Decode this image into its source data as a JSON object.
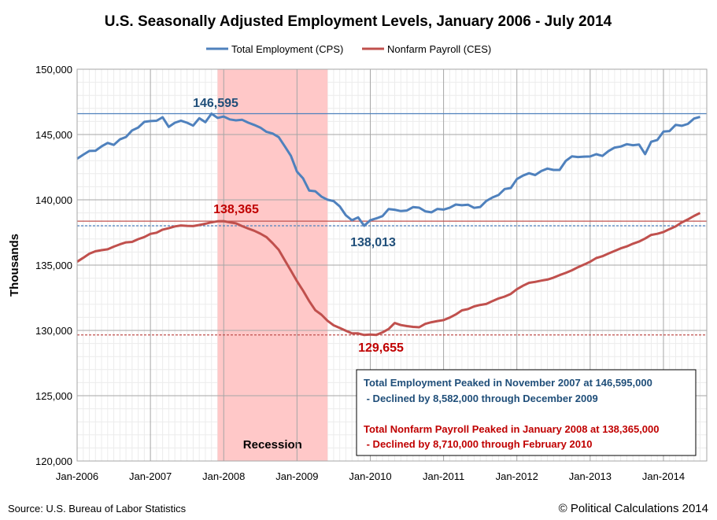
{
  "chart_data": {
    "type": "line",
    "title": "U.S. Seasonally Adjusted Employment Levels, January 2006 - July 2014",
    "ylabel": "Thousands",
    "xlabel": "",
    "ylim": [
      120000,
      150000
    ],
    "yticks": [
      "120,000",
      "125,000",
      "130,000",
      "135,000",
      "140,000",
      "145,000",
      "150,000"
    ],
    "xticks": [
      "Jan-2006",
      "Jan-2007",
      "Jan-2008",
      "Jan-2009",
      "Jan-2010",
      "Jan-2011",
      "Jan-2012",
      "Jan-2013",
      "Jan-2014"
    ],
    "x_start": "2006-01",
    "x_end": "2014-07",
    "grid": true,
    "legend_placement": "top",
    "recession": {
      "label": "Recession",
      "start": "2007-12",
      "end": "2009-06",
      "color": "#ffc8c8"
    },
    "series": [
      {
        "name": "Total Employment (CPS)",
        "color": "#4f81bd",
        "values": [
          143150,
          143457,
          143741,
          143761,
          144089,
          144353,
          144202,
          144625,
          144815,
          145314,
          145534,
          145970,
          146028,
          146057,
          146320,
          145586,
          145903,
          146063,
          145905,
          145682,
          146244,
          145946,
          146595,
          146273,
          146378,
          146156,
          146086,
          146132,
          145908,
          145737,
          145532,
          145203,
          145076,
          144802,
          144100,
          143369,
          142152,
          141640,
          140707,
          140656,
          140248,
          140009,
          139901,
          139492,
          138818,
          138432,
          138659,
          138013,
          138438,
          138581,
          138751,
          139297,
          139241,
          139141,
          139179,
          139438,
          139396,
          139119,
          139044,
          139301,
          139250,
          139394,
          139639,
          139586,
          139624,
          139384,
          139454,
          139918,
          140183,
          140368,
          140826,
          140902,
          141584,
          141858,
          142036,
          141899,
          142206,
          142391,
          142292,
          142291,
          142974,
          143328,
          143277,
          143305,
          143322,
          143492,
          143362,
          143730,
          143999,
          144078,
          144257,
          144180,
          144235,
          143500,
          144443,
          144586,
          145224,
          145266,
          145742,
          145669,
          145814,
          146221,
          146352
        ]
      },
      {
        "name": "Nonfarm Payroll (CES)",
        "color": "#c0504d",
        "values": [
          135261,
          135560,
          135875,
          136060,
          136143,
          136213,
          136416,
          136589,
          136739,
          136776,
          136990,
          137152,
          137390,
          137480,
          137719,
          137823,
          137964,
          138036,
          138007,
          137988,
          138075,
          138166,
          138277,
          138355,
          138365,
          138279,
          138199,
          137985,
          137803,
          137631,
          137411,
          137143,
          136685,
          136172,
          135382,
          134579,
          133763,
          133044,
          132241,
          131551,
          131202,
          130733,
          130392,
          130184,
          129976,
          129780,
          129770,
          129653,
          129684,
          129655,
          129847,
          130110,
          130568,
          130409,
          130333,
          130269,
          130238,
          130499,
          130627,
          130718,
          130788,
          130984,
          131225,
          131535,
          131633,
          131839,
          131954,
          132026,
          132247,
          132443,
          132592,
          132794,
          133152,
          133423,
          133644,
          133719,
          133816,
          133892,
          134042,
          134234,
          134406,
          134605,
          134837,
          135045,
          135261,
          135541,
          135682,
          135885,
          136084,
          136285,
          136434,
          136636,
          136800,
          137037,
          137311,
          137395,
          137539,
          137761,
          137964,
          138268,
          138497,
          138764,
          138995
        ]
      }
    ],
    "reference_lines": [
      {
        "value": 146595,
        "color": "#4f81bd",
        "style": "solid",
        "label": "146,595"
      },
      {
        "value": 138365,
        "color": "#c0504d",
        "style": "solid",
        "label": "138,365"
      },
      {
        "value": 138013,
        "color": "#4f81bd",
        "style": "dashed",
        "label": "138,013"
      },
      {
        "value": 129655,
        "color": "#c0504d",
        "style": "dashed",
        "label": "129,655"
      }
    ],
    "annotation": {
      "cps_line1": "Total Employment Peaked in November 2007 at 146,595,000",
      "cps_line2": " - Declined by 8,582,000 through December 2009",
      "ces_line1": "Total Nonfarm Payroll Peaked in January 2008 at 138,365,000",
      "ces_line2": " - Declined by 8,710,000 through February 2010"
    },
    "source": "Source: U.S. Bureau of Labor Statistics",
    "credit": "© Political Calculations 2014"
  }
}
